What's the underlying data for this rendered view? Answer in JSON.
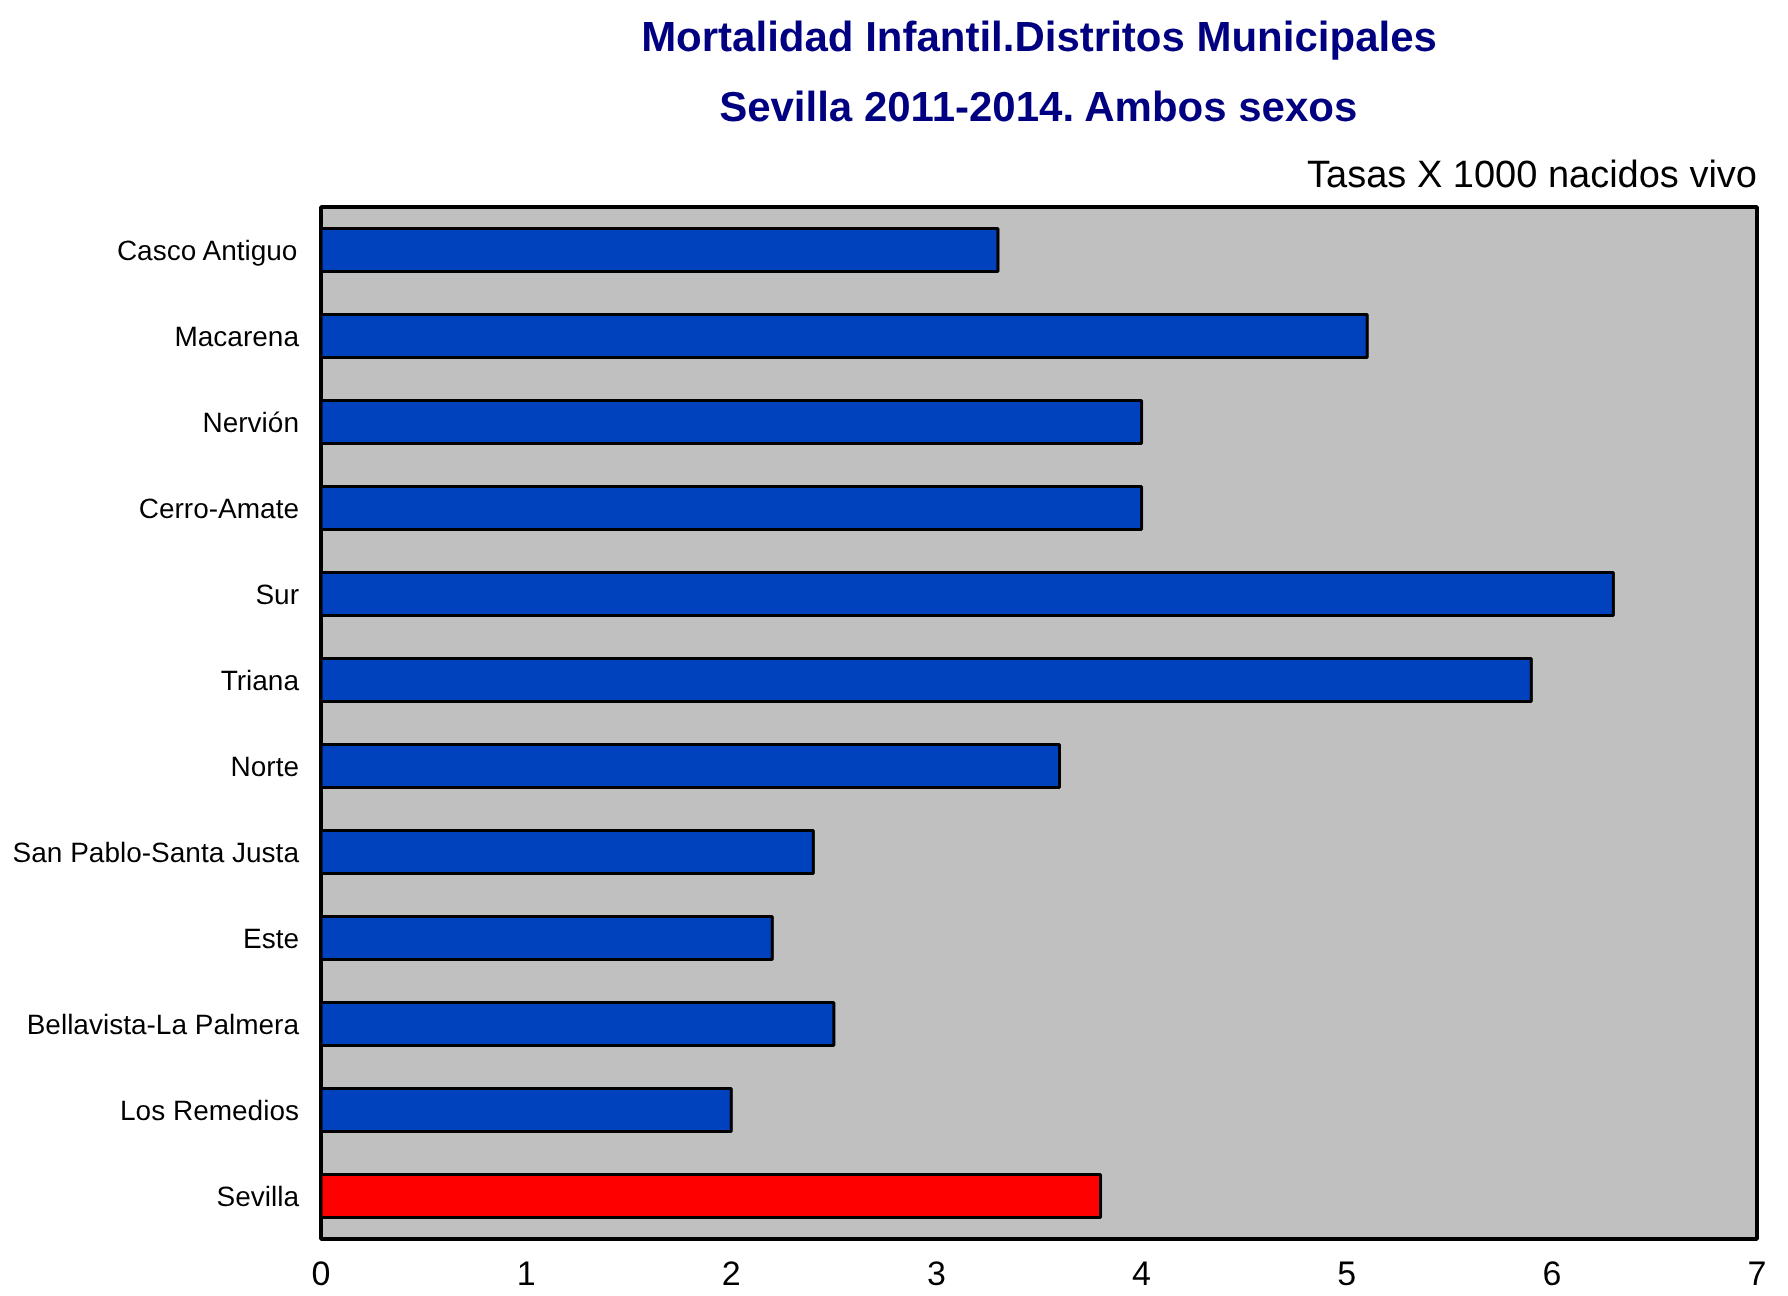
{
  "chart_data": {
    "type": "bar",
    "orientation": "horizontal",
    "title": "Mortalidad Infantil.Distritos Municipales",
    "subtitle": "Sevilla 2011-2014. Ambos sexos",
    "annotations": [
      "Tasas X 1000 nacidos vivo"
    ],
    "categories": [
      "Casco Antiguo",
      "Macarena",
      "Nervión",
      "Cerro-Amate",
      "Sur",
      "Triana",
      "Norte",
      "San Pablo-Santa Justa",
      "Este",
      "Bellavista-La Palmera",
      "Los Remedios",
      "Sevilla"
    ],
    "values": [
      3.3,
      5.1,
      4.0,
      4.0,
      6.3,
      5.9,
      3.6,
      2.4,
      2.2,
      2.5,
      2.0,
      3.8
    ],
    "colors": [
      "#0041bd",
      "#0041bd",
      "#0041bd",
      "#0041bd",
      "#0041bd",
      "#0041bd",
      "#0041bd",
      "#0041bd",
      "#0041bd",
      "#0041bd",
      "#0041bd",
      "#ff0000"
    ],
    "xlim": [
      0,
      7
    ],
    "xticks": [
      0,
      1,
      2,
      3,
      4,
      5,
      6,
      7
    ],
    "grid": false
  }
}
